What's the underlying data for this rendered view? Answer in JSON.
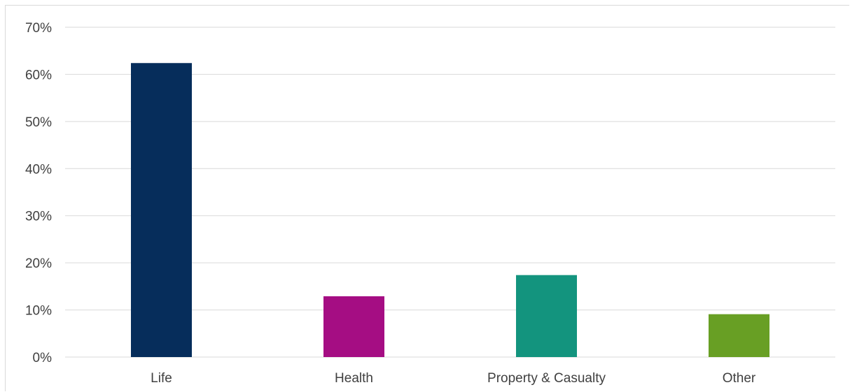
{
  "chart_data": {
    "type": "bar",
    "title": "",
    "xlabel": "",
    "ylabel": "",
    "categories": [
      "Life",
      "Health",
      "Property & Casualty",
      "Other"
    ],
    "values": [
      62.4,
      12.9,
      17.4,
      9.1
    ],
    "colors": [
      "#062d5b",
      "#a50d83",
      "#13947e",
      "#689f24"
    ],
    "ylim": [
      0,
      70
    ],
    "yticks": [
      0,
      10,
      20,
      30,
      40,
      50,
      60,
      70
    ],
    "ytick_labels": [
      "0%",
      "10%",
      "20%",
      "30%",
      "40%",
      "50%",
      "60%",
      "70%"
    ],
    "grid": true,
    "legend": "none"
  }
}
